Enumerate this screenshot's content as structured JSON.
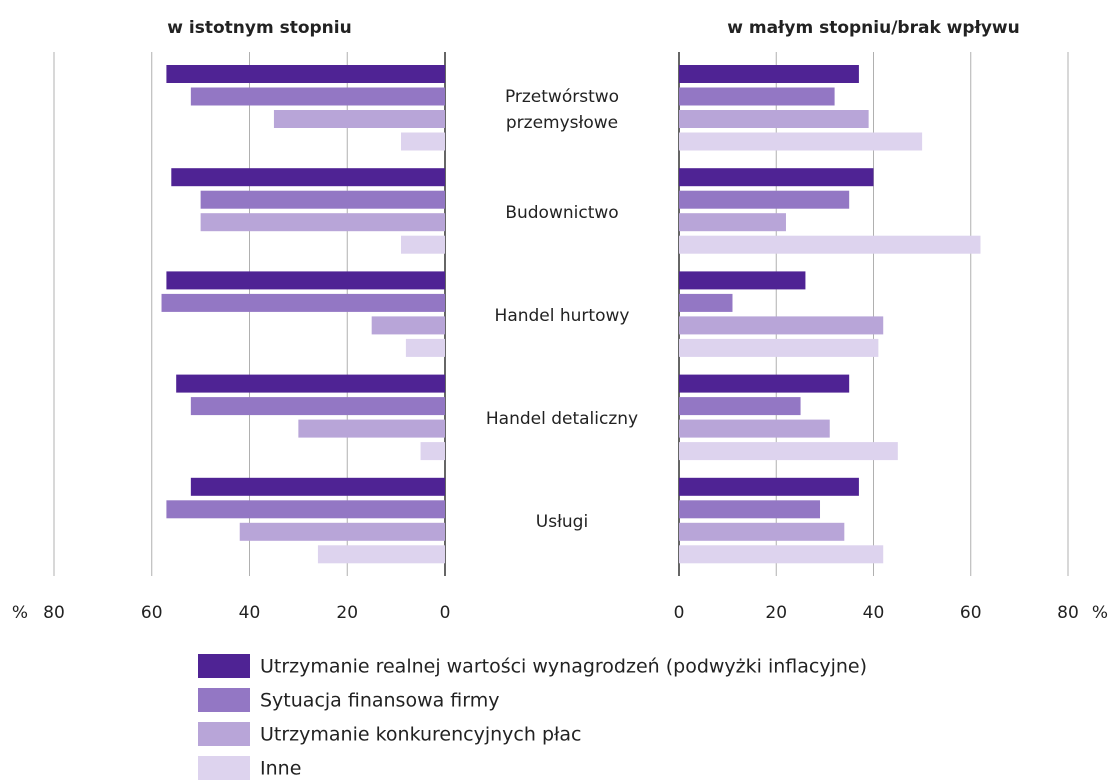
{
  "chart_data": {
    "type": "bar",
    "orientation": "horizontal",
    "unit_label": "%",
    "categories": [
      "Przetwórstwo przemysłowe",
      "Budownictwo",
      "Handel hurtowy",
      "Handel detaliczny",
      "Usługi"
    ],
    "series": [
      {
        "name": "Utrzymanie realnej wartości wynagrodzeń (podwyżki inflacyjne)",
        "color": "#4f2394"
      },
      {
        "name": "Sytuacja finansowa firmy",
        "color": "#9377c4"
      },
      {
        "name": "Utrzymanie konkurencyjnych płac",
        "color": "#b8a5d8"
      },
      {
        "name": "Inne",
        "color": "#ddd3ee"
      }
    ],
    "panels": [
      {
        "title": "w istotnym stopniu",
        "direction": "left",
        "xlim": [
          0,
          80
        ],
        "xticks": [
          0,
          20,
          40,
          60,
          80
        ],
        "values": [
          [
            57,
            56,
            57,
            55,
            52
          ],
          [
            52,
            50,
            58,
            52,
            57
          ],
          [
            35,
            50,
            15,
            30,
            42
          ],
          [
            9,
            9,
            8,
            5,
            26
          ]
        ]
      },
      {
        "title": "w małym stopniu/brak wpływu",
        "direction": "right",
        "xlim": [
          0,
          80
        ],
        "xticks": [
          0,
          20,
          40,
          60,
          80
        ],
        "values": [
          [
            37,
            40,
            26,
            35,
            37
          ],
          [
            32,
            35,
            11,
            25,
            29
          ],
          [
            39,
            22,
            42,
            31,
            34
          ],
          [
            50,
            62,
            41,
            45,
            42
          ]
        ]
      }
    ]
  }
}
